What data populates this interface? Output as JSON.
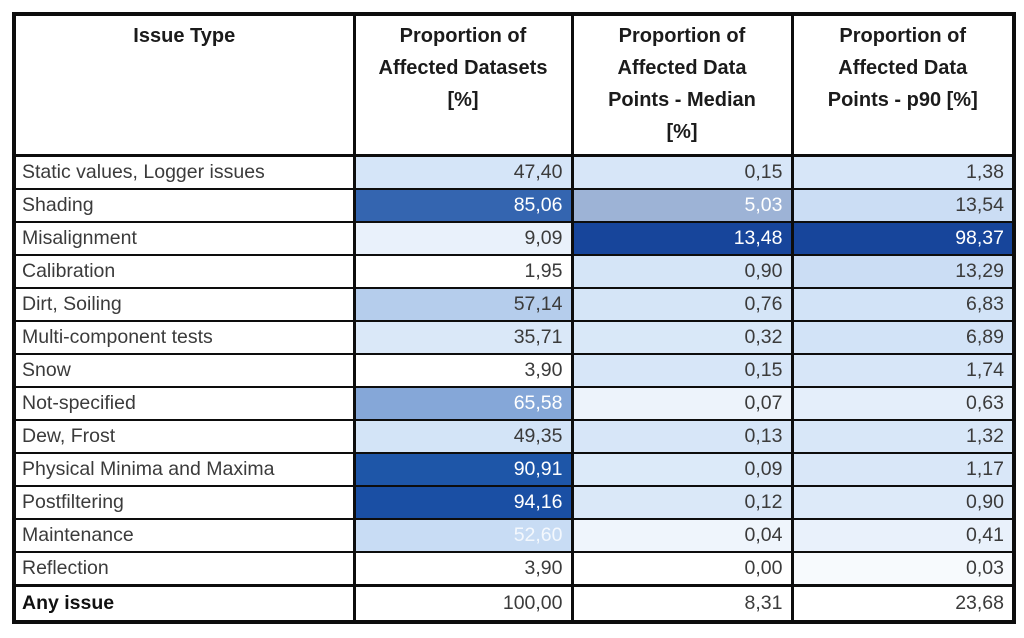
{
  "colors": {
    "border": "#0d0d0d",
    "body_text": "#3b3b3b",
    "header_text": "#1b1b1b",
    "white_text": "#ffffff",
    "scale_dark_blue": "#17459b",
    "scale_light_blue": "#d7e6f8",
    "cell_white": "#ffffff"
  },
  "chart_data": {
    "type": "table",
    "subtype": "heatmap-conditional-formatting",
    "decimal_separator": "comma",
    "columns": [
      "Issue Type",
      "Proportion of\nAffected Datasets\n[%]",
      "Proportion of\nAffected Data\nPoints - Median\n[%]",
      "Proportion of\nAffected Data\nPoints - p90 [%]"
    ],
    "rows": [
      {
        "issue_type": "Static values, Logger issues",
        "bold": false,
        "cells": [
          {
            "text": "47,40",
            "bg": "#d5e5f8",
            "fg": "#3b3b3b"
          },
          {
            "text": "0,15",
            "bg": "#d7e6f8",
            "fg": "#3b3b3b"
          },
          {
            "text": "1,38",
            "bg": "#d7e6f8",
            "fg": "#3b3b3b"
          }
        ]
      },
      {
        "issue_type": "Shading",
        "bold": false,
        "cells": [
          {
            "text": "85,06",
            "bg": "#3465b0",
            "fg": "#ffffff"
          },
          {
            "text": "5,03",
            "bg": "#9db3d6",
            "fg": "#ffffff"
          },
          {
            "text": "13,54",
            "bg": "#cbddf4",
            "fg": "#3b3b3b"
          }
        ]
      },
      {
        "issue_type": "Misalignment",
        "bold": false,
        "cells": [
          {
            "text": "9,09",
            "bg": "#e9f1fb",
            "fg": "#3b3b3b"
          },
          {
            "text": "13,48",
            "bg": "#17459b",
            "fg": "#ffffff"
          },
          {
            "text": "98,37",
            "bg": "#17459b",
            "fg": "#ffffff"
          }
        ]
      },
      {
        "issue_type": "Calibration",
        "bold": false,
        "cells": [
          {
            "text": "1,95",
            "bg": "#ffffff",
            "fg": "#3b3b3b"
          },
          {
            "text": "0,90",
            "bg": "#d5e5f7",
            "fg": "#3b3b3b"
          },
          {
            "text": "13,29",
            "bg": "#cbddf4",
            "fg": "#3b3b3b"
          }
        ]
      },
      {
        "issue_type": "Dirt, Soiling",
        "bold": false,
        "cells": [
          {
            "text": "57,14",
            "bg": "#b5cdec",
            "fg": "#3b3b3b"
          },
          {
            "text": "0,76",
            "bg": "#d5e5f7",
            "fg": "#3b3b3b"
          },
          {
            "text": "6,83",
            "bg": "#d2e3f7",
            "fg": "#3b3b3b"
          }
        ]
      },
      {
        "issue_type": "Multi-component tests",
        "bold": false,
        "cells": [
          {
            "text": "35,71",
            "bg": "#dae8f8",
            "fg": "#3b3b3b"
          },
          {
            "text": "0,32",
            "bg": "#d9e8f8",
            "fg": "#3b3b3b"
          },
          {
            "text": "6,89",
            "bg": "#d2e3f7",
            "fg": "#3b3b3b"
          }
        ]
      },
      {
        "issue_type": "Snow",
        "bold": false,
        "cells": [
          {
            "text": "3,90",
            "bg": "#ffffff",
            "fg": "#3b3b3b"
          },
          {
            "text": "0,15",
            "bg": "#d7e6f8",
            "fg": "#3b3b3b"
          },
          {
            "text": "1,74",
            "bg": "#d7e6f8",
            "fg": "#3b3b3b"
          }
        ]
      },
      {
        "issue_type": "Not-specified",
        "bold": false,
        "cells": [
          {
            "text": "65,58",
            "bg": "#85a7d8",
            "fg": "#ffffff"
          },
          {
            "text": "0,07",
            "bg": "#edf3fb",
            "fg": "#3b3b3b"
          },
          {
            "text": "0,63",
            "bg": "#e4eefa",
            "fg": "#3b3b3b"
          }
        ]
      },
      {
        "issue_type": "Dew, Frost",
        "bold": false,
        "cells": [
          {
            "text": "49,35",
            "bg": "#d3e4f7",
            "fg": "#3b3b3b"
          },
          {
            "text": "0,13",
            "bg": "#d7e6f8",
            "fg": "#3b3b3b"
          },
          {
            "text": "1,32",
            "bg": "#d8e7f8",
            "fg": "#3b3b3b"
          }
        ]
      },
      {
        "issue_type": "Physical Minima and Maxima",
        "bold": false,
        "cells": [
          {
            "text": "90,91",
            "bg": "#1e56a8",
            "fg": "#ffffff"
          },
          {
            "text": "0,09",
            "bg": "#dceaf9",
            "fg": "#3b3b3b"
          },
          {
            "text": "1,17",
            "bg": "#d9e7f8",
            "fg": "#3b3b3b"
          }
        ]
      },
      {
        "issue_type": "Postfiltering",
        "bold": false,
        "cells": [
          {
            "text": "94,16",
            "bg": "#1a4fa4",
            "fg": "#ffffff"
          },
          {
            "text": "0,12",
            "bg": "#dae8f8",
            "fg": "#3b3b3b"
          },
          {
            "text": "0,90",
            "bg": "#ddeaf9",
            "fg": "#3b3b3b"
          }
        ]
      },
      {
        "issue_type": "Maintenance",
        "bold": false,
        "cells": [
          {
            "text": "52,60",
            "bg": "#c8dcf4",
            "fg": "#f4f8fd"
          },
          {
            "text": "0,04",
            "bg": "#eff5fc",
            "fg": "#3b3b3b"
          },
          {
            "text": "0,41",
            "bg": "#e9f1fb",
            "fg": "#3b3b3b"
          }
        ]
      },
      {
        "issue_type": "Reflection",
        "bold": false,
        "cells": [
          {
            "text": "3,90",
            "bg": "#ffffff",
            "fg": "#3b3b3b"
          },
          {
            "text": "0,00",
            "bg": "#ffffff",
            "fg": "#3b3b3b"
          },
          {
            "text": "0,03",
            "bg": "#f7fafd",
            "fg": "#3b3b3b"
          }
        ]
      },
      {
        "issue_type": "Any issue",
        "bold": true,
        "cells": [
          {
            "text": "100,00",
            "bg": "#ffffff",
            "fg": "#3b3b3b"
          },
          {
            "text": "8,31",
            "bg": "#ffffff",
            "fg": "#3b3b3b"
          },
          {
            "text": "23,68",
            "bg": "#ffffff",
            "fg": "#3b3b3b"
          }
        ]
      }
    ]
  }
}
